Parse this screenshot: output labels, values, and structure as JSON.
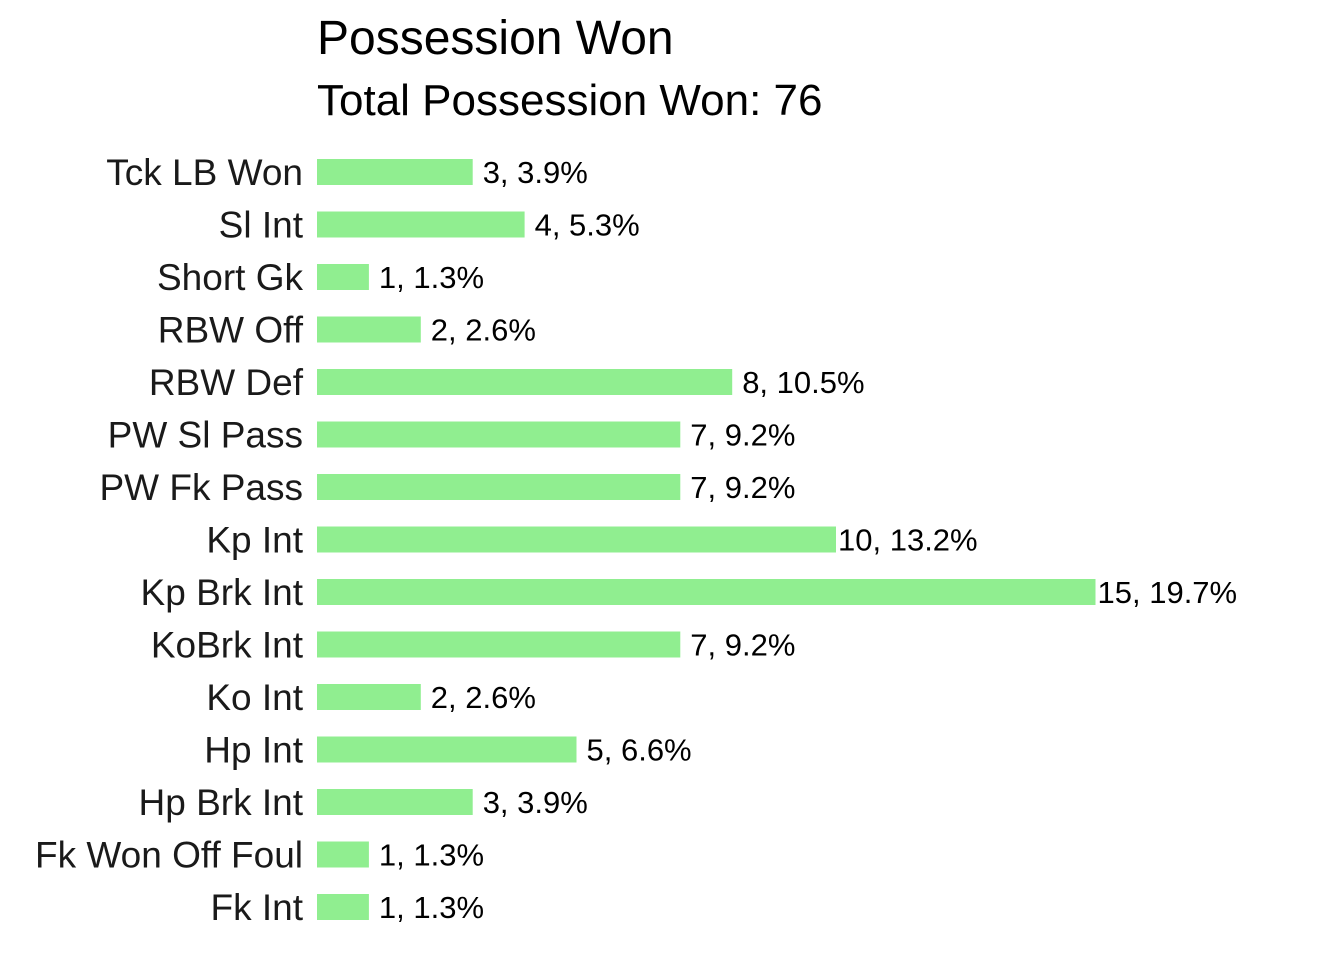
{
  "chart_data": {
    "type": "bar",
    "orientation": "horizontal",
    "title": "Possession Won",
    "subtitle": "Total Possession Won: 76",
    "xlabel": "",
    "ylabel": "",
    "categories": [
      "Tck LB Won",
      "Sl Int",
      "Short Gk",
      "RBW Off",
      "RBW Def",
      "PW Sl Pass",
      "PW Fk Pass",
      "Kp Int",
      "Kp Brk Int",
      "KoBrk Int",
      "Ko Int",
      "Hp Int",
      "Hp Brk Int",
      "Fk Won Off Foul",
      "Fk Int"
    ],
    "values": [
      3,
      4,
      1,
      2,
      8,
      7,
      7,
      10,
      15,
      7,
      2,
      5,
      3,
      1,
      1
    ],
    "data_labels": [
      "3, 3.9%",
      "4, 5.3%",
      "1, 1.3%",
      "2, 2.6%",
      "8, 10.5%",
      "7, 9.2%",
      "7, 9.2%",
      "10, 13.2%",
      "15, 19.7%",
      "7, 9.2%",
      "2, 2.6%",
      "5, 6.6%",
      "3, 3.9%",
      "1, 1.3%",
      "1, 1.3%"
    ],
    "xlim": [
      0,
      15
    ],
    "grid": false,
    "legend": "none",
    "bar_color": "#90ee90"
  }
}
